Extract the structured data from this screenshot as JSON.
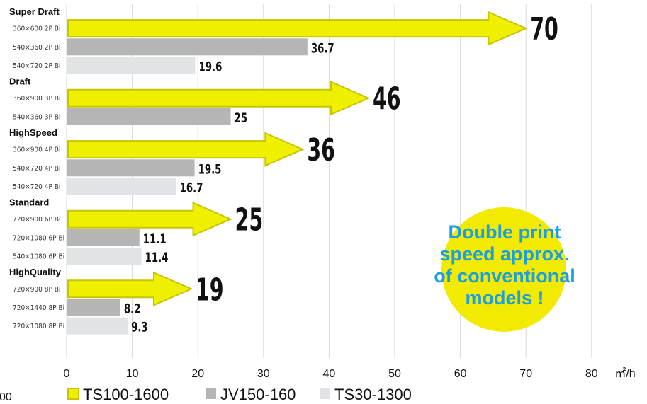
{
  "colors": {
    "ts100": "#eef000",
    "ts100_border": "#c7c400",
    "jv150": "#b5b5b5",
    "ts30": "#e1e3e6",
    "grid": "#d9d9d9",
    "callout_bg": "#f2ea00",
    "callout_text": "#1aa0e0"
  },
  "chart_data": {
    "type": "bar",
    "orientation": "horizontal",
    "xlabel": "㎡/h",
    "xlim": [
      0,
      80
    ],
    "xticks": [
      0,
      10,
      20,
      30,
      40,
      50,
      60,
      70,
      80
    ],
    "grid": true,
    "legend_position": "bottom",
    "series": [
      {
        "name": "TS100-1600",
        "key": "ts100",
        "style": "arrow"
      },
      {
        "name": "JV150-160",
        "key": "jv150",
        "style": "bar"
      },
      {
        "name": "TS30-1300",
        "key": "ts30",
        "style": "bar"
      }
    ],
    "groups": [
      {
        "label": "Super Draft",
        "rows": [
          {
            "label": "360×600 2P Bi",
            "series": "ts100",
            "value": 70
          },
          {
            "label": "540×360 2P Bi",
            "series": "jv150",
            "value": 36.7
          },
          {
            "label": "540×720 2P Bi",
            "series": "ts30",
            "value": 19.6
          }
        ]
      },
      {
        "label": "Draft",
        "rows": [
          {
            "label": "360×900 3P Bi",
            "series": "ts100",
            "value": 46
          },
          {
            "label": "540×360 3P Bi",
            "series": "jv150",
            "value": 25
          }
        ]
      },
      {
        "label": "HighSpeed",
        "rows": [
          {
            "label": "360×900 4P Bi",
            "series": "ts100",
            "value": 36
          },
          {
            "label": "540×720 4P Bi",
            "series": "jv150",
            "value": 19.5
          },
          {
            "label": "540×720 4P Bi",
            "series": "ts30",
            "value": 16.7
          }
        ]
      },
      {
        "label": "Standard",
        "rows": [
          {
            "label": "720×900 6P Bi",
            "series": "ts100",
            "value": 25
          },
          {
            "label": "720×1080 6P Bi",
            "series": "jv150",
            "value": 11.1
          },
          {
            "label": "540×1080 6P Bi",
            "series": "ts30",
            "value": 11.4
          }
        ]
      },
      {
        "label": "HighQuality",
        "rows": [
          {
            "label": "720×900 8P Bi",
            "series": "ts100",
            "value": 19
          },
          {
            "label": "720×1440 8P Bi",
            "series": "jv150",
            "value": 8.2
          },
          {
            "label": "720×1080 8P Bi",
            "series": "ts30",
            "value": 9.3
          }
        ]
      }
    ],
    "annotation": "Double print speed approx. of conventional models !",
    "annotation_lines": [
      "Double print",
      "speed approx.",
      "of conventional",
      "models !"
    ],
    "stray_label": "00"
  }
}
